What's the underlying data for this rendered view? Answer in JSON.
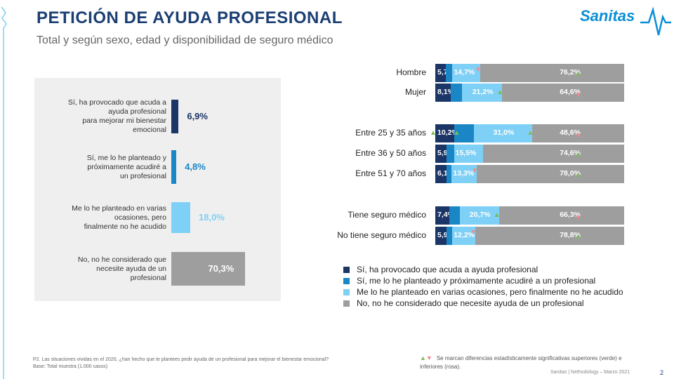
{
  "title": "PETICIÓN DE AYUDA PROFESIONAL",
  "subtitle": "Total y según sexo, edad y disponibilidad de seguro médico",
  "logo": {
    "text": "Sanitas",
    "color": "#0a8fd6"
  },
  "colors": {
    "c1": "#1b3566",
    "c2": "#1a86c5",
    "c3": "#7fd0f6",
    "c4": "#9e9e9e",
    "up": "#7dbb57",
    "down": "#f08a8e"
  },
  "chart_data": [
    {
      "type": "bar",
      "orientation": "horizontal",
      "categories": [
        "Sí, ha provocado que acuda a ayuda profesional para mejorar mi bienestar emocional",
        "Sí, me lo he planteado y próximamente acudiré a un profesional",
        "Me lo he planteado en varias ocasiones, pero finalmente no he acudido",
        "No, no he considerado que necesite ayuda de un profesional"
      ],
      "label_lines": [
        [
          "Sí, ha provocado que acuda a",
          "ayuda profesional",
          "para mejorar mi bienestar",
          "emocional"
        ],
        [
          "Sí, me lo he planteado y",
          "próximamente acudiré a",
          "un profesional"
        ],
        [
          "Me lo he planteado en varias",
          "ocasiones, pero",
          "finalmente no he acudido"
        ],
        [
          "No, no he considerado que",
          "necesite ayuda de un",
          "profesional"
        ]
      ],
      "values": [
        6.9,
        4.8,
        18.0,
        70.3
      ],
      "value_labels": [
        "6,9%",
        "4,8%",
        "18,0%",
        "70,3%"
      ],
      "xlim": [
        0,
        100
      ]
    },
    {
      "type": "bar",
      "stacked": true,
      "orientation": "horizontal",
      "categories": [
        "Hombre",
        "Mujer",
        "Entre 25 y 35 años",
        "Entre 36 y 50 años",
        "Entre 51 y 70 años",
        "Tiene seguro médico",
        "No tiene seguro médico"
      ],
      "groups": [
        [
          0,
          1
        ],
        [
          2,
          3,
          4
        ],
        [
          5,
          6
        ]
      ],
      "series": [
        {
          "name": "Sí, ha provocado que acuda a ayuda profesional",
          "values": [
            5.7,
            8.1,
            10.2,
            5.9,
            6.1,
            7.4,
            5.9
          ],
          "labels": [
            "5,7%",
            "8,1%",
            "10,2%",
            "5,9%",
            "6,1%",
            "7,4%",
            "5,9%"
          ]
        },
        {
          "name": "Sí, me lo he planteado y próximamente acudiré a un profesional",
          "values": [
            3.4,
            6.1,
            10.2,
            4.0,
            2.6,
            5.6,
            3.1
          ],
          "labels": [
            "",
            "",
            "",
            "",
            "",
            "",
            ""
          ]
        },
        {
          "name": "Me lo he planteado en varias ocasiones, pero finalmente no he acudido",
          "values": [
            14.7,
            21.2,
            31.0,
            15.5,
            13.3,
            20.7,
            12.2
          ],
          "labels": [
            "14,7%",
            "21,2%",
            "31,0%",
            "15,5%",
            "13,3%",
            "20,7%",
            "12,2%"
          ]
        },
        {
          "name": "No, no he considerado que necesite ayuda de un profesional",
          "values": [
            76.2,
            64.6,
            48.6,
            74.6,
            78.0,
            66.3,
            78.8
          ],
          "labels": [
            "76,2%",
            "64,6%",
            "48,6%",
            "74,6%",
            "78,0%",
            "66,3%",
            "78,8%"
          ]
        }
      ],
      "significance": [
        [
          null,
          null,
          "down",
          "up"
        ],
        [
          null,
          null,
          "up",
          "down"
        ],
        [
          "up",
          "up",
          "up",
          "down"
        ],
        [
          null,
          null,
          null,
          "up"
        ],
        [
          null,
          null,
          "down",
          "up"
        ],
        [
          null,
          null,
          "up",
          "down"
        ],
        [
          null,
          null,
          "down",
          "up"
        ]
      ],
      "xlim": [
        0,
        100
      ],
      "legend": "bottom"
    }
  ],
  "legend_items": [
    "Sí, ha provocado que acuda a ayuda profesional",
    "Sí, me lo he planteado y próximamente acudiré a un profesional",
    "Me lo he planteado en varias ocasiones, pero finalmente no he acudido",
    "No, no he considerado que necesite ayuda de un profesional"
  ],
  "footnote": {
    "question": "P2. Las situaciones vividas en el 2020, ¿han hecho que te plantees pedir ayuda de un profesional para mejorar el bienestar emocional?",
    "base": "Base: Total muestra (1.000 casos)"
  },
  "sig_note": "Se marcan diferencias estadísticamente significativas superiores (verde) e inferiores (rosa).",
  "footer": "Sanitas | Nethodology – Marzo 2021",
  "page_number": "2"
}
